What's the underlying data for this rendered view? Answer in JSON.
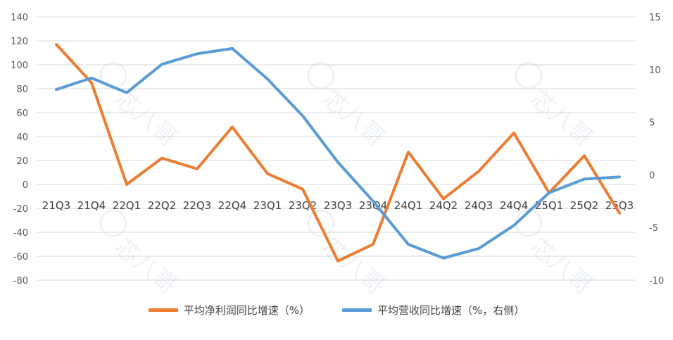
{
  "chart_data": {
    "type": "line",
    "categories": [
      "21Q3",
      "21Q4",
      "22Q1",
      "22Q2",
      "22Q3",
      "22Q4",
      "23Q1",
      "23Q2",
      "23Q3",
      "23Q4",
      "24Q1",
      "24Q2",
      "24Q3",
      "24Q4",
      "25Q1",
      "25Q2",
      "25Q3"
    ],
    "left_axis": {
      "ylim": [
        -80,
        140
      ],
      "ticks": [
        140,
        120,
        100,
        80,
        60,
        40,
        20,
        0,
        -20,
        -40,
        -60,
        -80
      ]
    },
    "right_axis": {
      "ylim": [
        -10,
        15
      ],
      "ticks": [
        15,
        10,
        5,
        0,
        -5,
        -10
      ]
    },
    "series": [
      {
        "name": "平均净利润同比增速（%）",
        "axis": "left",
        "color": "#ED7D31",
        "values": [
          117,
          85,
          0,
          22,
          13,
          48,
          9,
          -4,
          -64,
          -50,
          27,
          -12,
          11,
          43,
          -7,
          24,
          -24
        ]
      },
      {
        "name": "平均营收同比增速（%，右侧）",
        "axis": "right",
        "color": "#5B9BD5",
        "values": [
          8.1,
          9.2,
          7.8,
          10.5,
          11.5,
          12.0,
          9.1,
          5.6,
          1.2,
          -2.5,
          -6.6,
          -7.9,
          -7.0,
          -4.8,
          -1.7,
          -0.4,
          -0.2
        ]
      }
    ],
    "grid": true,
    "legend_position": "bottom",
    "watermark": "芯八哥"
  }
}
